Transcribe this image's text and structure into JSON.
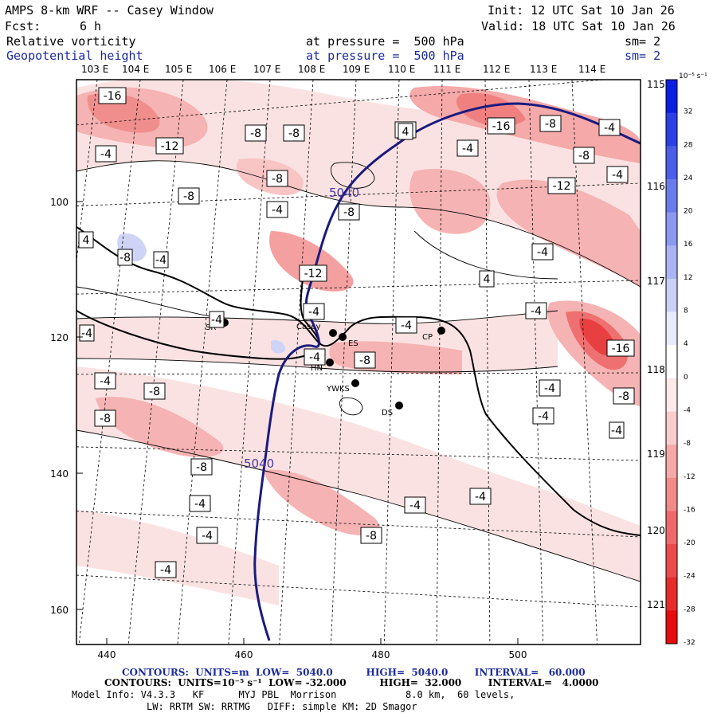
{
  "header": {
    "title": "AMPS 8-km WRF -- Casey Window",
    "init": "Init: 12 UTC Sat 10 Jan 26",
    "fcst_label": "Fcst:",
    "fcst_value": "6 h",
    "valid": "Valid: 18 UTC Sat 10 Jan 26",
    "field1": "Relative vorticity",
    "field1_level": "at pressure =  500 hPa",
    "field1_sm": "sm= 2",
    "field2": "Geopotential height",
    "field2_level": "at pressure =  500 hPa",
    "field2_sm": "sm= 2"
  },
  "map": {
    "lon_labels": [
      "103 E",
      "104 E",
      "105 E",
      "106 E",
      "107 E",
      "108 E",
      "109 E",
      "110 E",
      "111 E",
      "112 E",
      "113 E",
      "114 E"
    ],
    "lat_labels": [
      "115 E",
      "116 E",
      "117 E",
      "118 E",
      "119 E",
      "120 E",
      "121 E"
    ],
    "left_ticks": [
      "100",
      "120",
      "140",
      "160"
    ],
    "bottom_ticks": [
      "440",
      "460",
      "480",
      "500"
    ],
    "stations": [
      "SR",
      "Casey",
      "ES",
      "HN",
      "YWKS",
      "CP",
      "DS"
    ],
    "contour_labels": [
      "-16",
      "-12",
      "-8",
      "-8",
      "-8",
      "-4",
      "-4",
      "-8",
      "-8",
      "-4",
      "-4",
      "-16",
      "-8",
      "-4",
      "-4",
      "-8",
      "-4",
      "-12",
      "4",
      "-4",
      "-12",
      "-4",
      "4",
      "-4",
      "-4",
      "-8",
      "-4",
      "-4",
      "-16",
      "-4",
      "-8",
      "-4",
      "-8",
      "-4",
      "-4",
      "-8",
      "-8",
      "-8",
      "-4",
      "-4",
      "-4",
      "-4",
      "-4",
      "-8",
      "-4",
      "4",
      "4",
      "4",
      "4",
      "-4",
      "-8"
    ],
    "height_label": "5040",
    "colors": {
      "positive": "#2b3fd8",
      "negative": "#e84040",
      "height_line": "#1a1a80"
    }
  },
  "colorbar": {
    "units": "10⁻⁵ s⁻¹",
    "ticks": [
      "32",
      "28",
      "24",
      "20",
      "16",
      "12",
      "8",
      "4",
      "0",
      "-4",
      "-8",
      "-12",
      "-16",
      "-20",
      "-24",
      "-28",
      "-32"
    ],
    "colors": [
      "#0a1fe0",
      "#2a40e6",
      "#4a5ee9",
      "#6a7cec",
      "#8a98f0",
      "#aab4f4",
      "#cad0f8",
      "#e8ebfc",
      "#ffffff",
      "#fde9e9",
      "#f9cccc",
      "#f5a9a9",
      "#f28a8a",
      "#ee6a6a",
      "#ea4a4a",
      "#e62b2b",
      "#e60c0c"
    ]
  },
  "footer": {
    "line1": "CONTOURS:  UNITS=m  LOW=  5040.0          HIGH=  5040.0        INTERVAL=   60.000",
    "line2": "CONTOURS:  UNITS=10⁻⁵ s⁻¹  LOW= -32.000          HIGH=  32.000        INTERVAL=   4.0000",
    "line3": "Model Info: V4.3.3   KF      MYJ PBL  Morrison            8.0 km,  60 levels,",
    "line4": "LW: RRTM SW: RRTMG   DIFF: simple KM: 2D Smagor"
  }
}
